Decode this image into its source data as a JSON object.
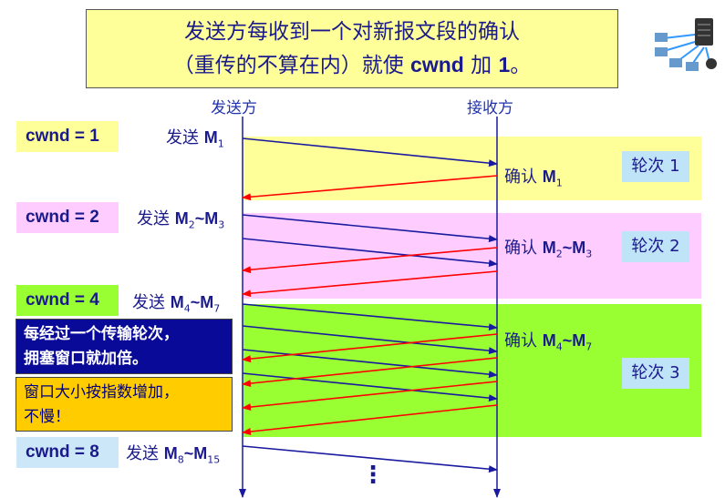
{
  "title": {
    "line1": "发送方每收到一个对新报文段的确认",
    "line2_pre": "（重传的不算在内）就使 ",
    "line2_keyword": "cwnd",
    "line2_mid": " 加 ",
    "line2_num": "1",
    "line2_end": "。"
  },
  "headers": {
    "sender": "发送方",
    "receiver": "接收方"
  },
  "cwnd": [
    "cwnd = 1",
    "cwnd = 2",
    "cwnd = 4",
    "cwnd = 8"
  ],
  "send_labels": [
    {
      "prefix": "发送 ",
      "text": "M",
      "sub": "1",
      "tail": "",
      "sub2": ""
    },
    {
      "prefix": "发送 ",
      "text": "M",
      "sub": "2",
      "tail": "~M",
      "sub2": "3"
    },
    {
      "prefix": "发送 ",
      "text": "M",
      "sub": "4",
      "tail": "~M",
      "sub2": "7"
    },
    {
      "prefix": "发送 ",
      "text": "M",
      "sub": "8",
      "tail": "~M",
      "sub2": "15"
    }
  ],
  "ack_labels": [
    {
      "prefix": "确认 ",
      "text": "M",
      "sub": "1",
      "tail": "",
      "sub2": ""
    },
    {
      "prefix": "确认 ",
      "text": "M",
      "sub": "2",
      "tail": "~M",
      "sub2": "3"
    },
    {
      "prefix": "确认 ",
      "text": "M",
      "sub": "4",
      "tail": "~M",
      "sub2": "7"
    }
  ],
  "rounds": [
    "轮次 1",
    "轮次 2",
    "轮次 3"
  ],
  "notes": {
    "doubling_line1": "每经过一个传输轮次，",
    "doubling_line2": "拥塞窗口就加倍。",
    "growth_line1": "窗口大小按指数增加，",
    "growth_line2": "不慢！"
  },
  "continuation": "⋮",
  "colors": {
    "round1": "#ffff99",
    "round2": "#ffccff",
    "round3": "#99ff33",
    "send_arrow": "#1a1aa0",
    "ack_arrow": "#ff0000",
    "note_blue": "#0a0a99",
    "note_yellow": "#ffcc00"
  },
  "icons": [
    "network-topology-icon"
  ]
}
